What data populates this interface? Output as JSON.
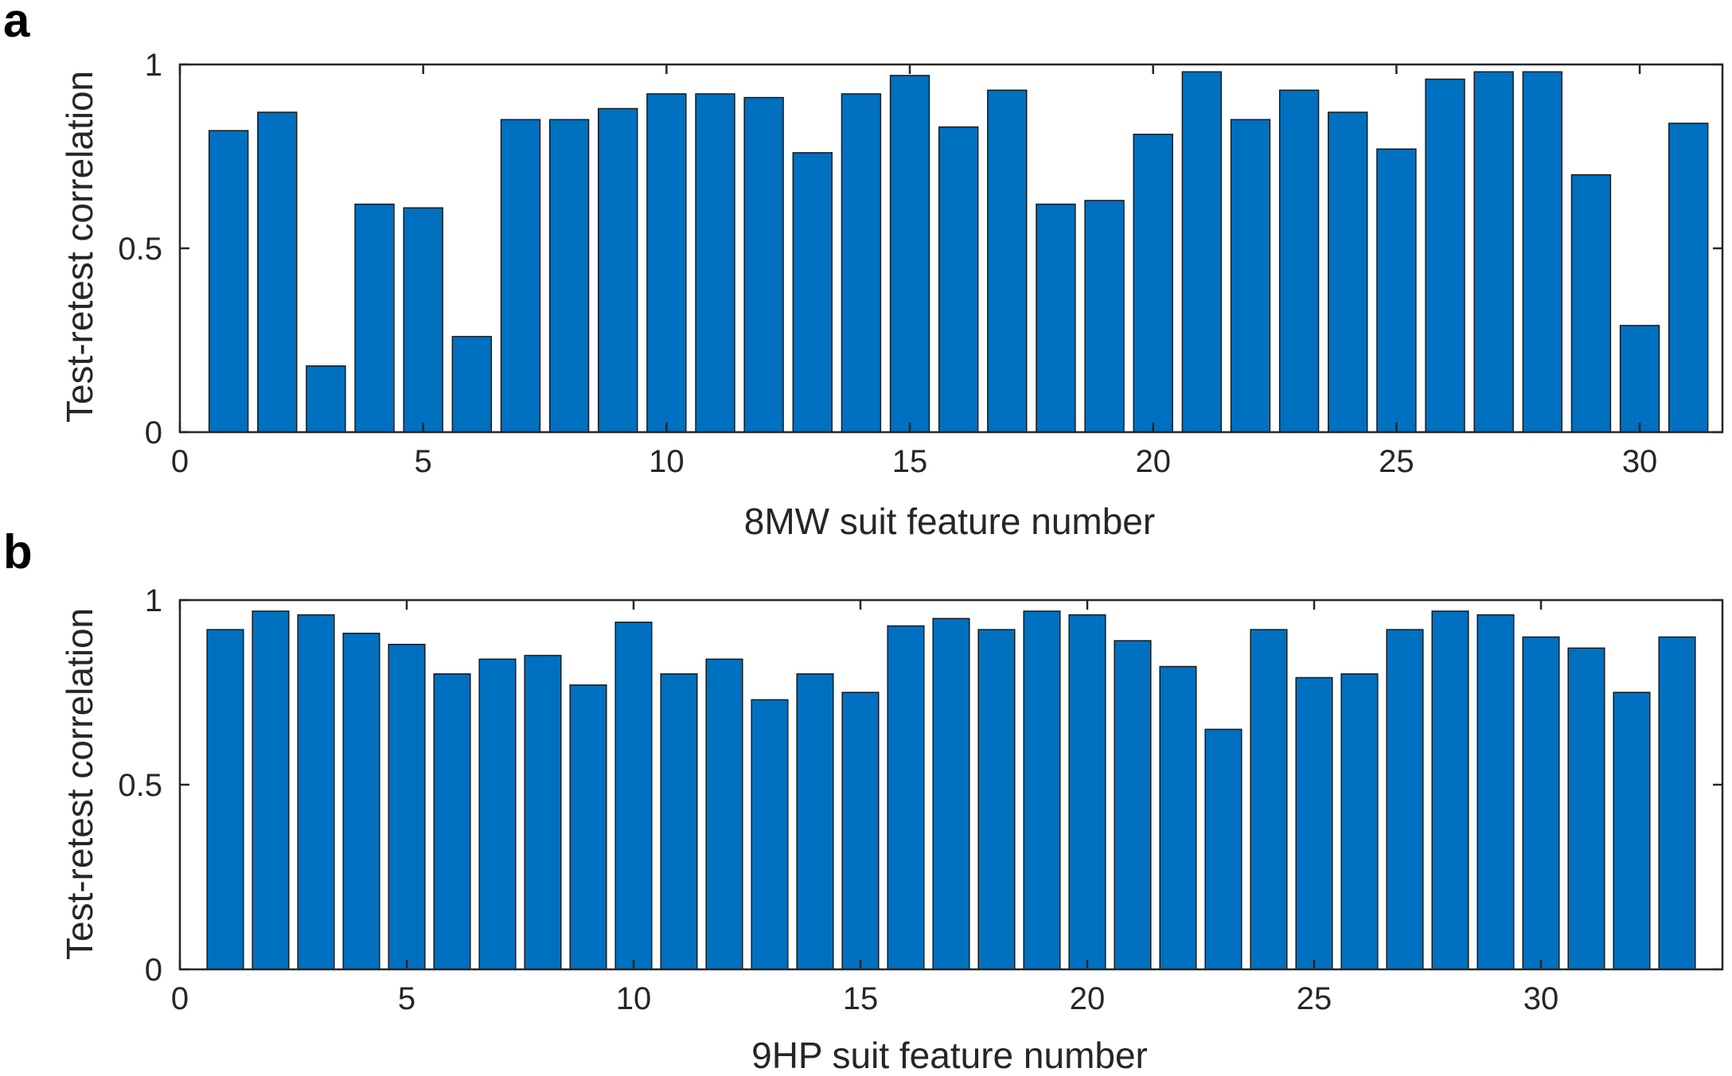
{
  "colors": {
    "bar": "#0070C0",
    "axis": "#262626"
  },
  "chart_data": [
    {
      "type": "bar",
      "panel_label": "a",
      "xlabel": "8MW suit feature number",
      "ylabel": "Test-retest correlation",
      "xlim": [
        0,
        31.7
      ],
      "ylim": [
        0,
        1
      ],
      "xticks": [
        0,
        5,
        10,
        15,
        20,
        25,
        30
      ],
      "yticks": [
        0,
        0.5,
        1
      ],
      "ytick_labels": [
        "0",
        "0.5",
        "1"
      ],
      "grid": false,
      "x": [
        1,
        2,
        3,
        4,
        5,
        6,
        7,
        8,
        9,
        10,
        11,
        12,
        13,
        14,
        15,
        16,
        17,
        18,
        19,
        20,
        21,
        22,
        23,
        24,
        25,
        26,
        27,
        28,
        29,
        30,
        31
      ],
      "values": [
        0.82,
        0.87,
        0.18,
        0.62,
        0.61,
        0.26,
        0.85,
        0.85,
        0.88,
        0.92,
        0.92,
        0.91,
        0.76,
        0.92,
        0.97,
        0.83,
        0.93,
        0.62,
        0.63,
        0.81,
        0.98,
        0.85,
        0.93,
        0.87,
        0.77,
        0.96,
        0.98,
        0.98,
        0.7,
        0.29,
        0.84
      ]
    },
    {
      "type": "bar",
      "panel_label": "b",
      "xlabel": "9HP suit feature number",
      "ylabel": "Test-retest correlation",
      "xlim": [
        0,
        34
      ],
      "ylim": [
        0,
        1
      ],
      "xticks": [
        0,
        5,
        10,
        15,
        20,
        25,
        30
      ],
      "yticks": [
        0,
        0.5,
        1
      ],
      "ytick_labels": [
        "0",
        "0.5",
        "1"
      ],
      "grid": false,
      "x": [
        1,
        2,
        3,
        4,
        5,
        6,
        7,
        8,
        9,
        10,
        11,
        12,
        13,
        14,
        15,
        16,
        17,
        18,
        19,
        20,
        21,
        22,
        23,
        24,
        25,
        26,
        27,
        28,
        29,
        30,
        31,
        32,
        33
      ],
      "values": [
        0.92,
        0.97,
        0.96,
        0.91,
        0.88,
        0.8,
        0.84,
        0.85,
        0.77,
        0.94,
        0.8,
        0.84,
        0.73,
        0.8,
        0.75,
        0.93,
        0.95,
        0.92,
        0.97,
        0.96,
        0.89,
        0.82,
        0.65,
        0.92,
        0.79,
        0.8,
        0.92,
        0.97,
        0.96,
        0.9,
        0.87,
        0.75,
        0.9
      ]
    }
  ]
}
